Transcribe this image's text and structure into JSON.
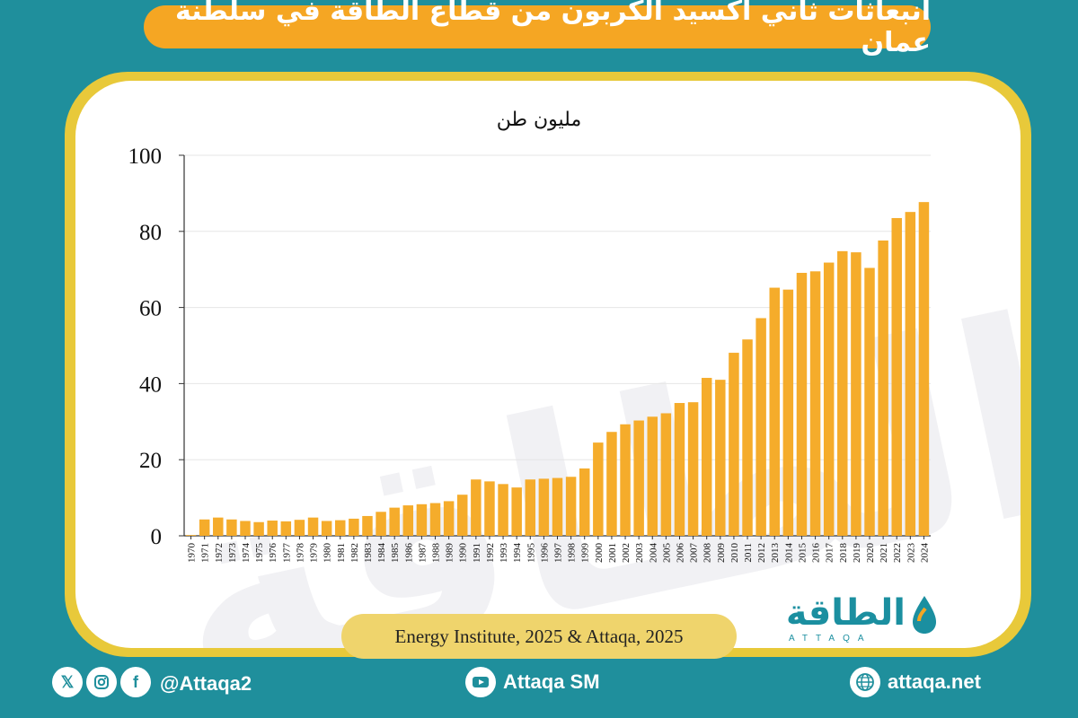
{
  "header": {
    "title": "انبعاثات ثاني أكسيد الكربون من قطاع الطاقة في سلطنة عمان"
  },
  "watermark": {
    "text": "الطاقة"
  },
  "source": {
    "text": "Energy Institute, 2025 & Attaqa, 2025"
  },
  "logo": {
    "arabic": "الطاقة",
    "latin": "ATTAQA"
  },
  "footer": {
    "handle": "@Attaqa2",
    "youtube": "Attaqa SM",
    "website": "attaqa.net",
    "icons": [
      "x-icon",
      "instagram-icon",
      "facebook-icon",
      "youtube-icon",
      "globe-icon"
    ]
  },
  "colors": {
    "background": "#1f8f9c",
    "title_pill": "#f5a623",
    "card_border": "#e8c93a",
    "bar": "#f5ac2b",
    "source_pill": "#efd46c",
    "brand": "#1b8fa0"
  },
  "chart_data": {
    "type": "bar",
    "title": "",
    "unit_label": "مليون طن",
    "xlabel": "",
    "ylabel": "",
    "ylim": [
      0,
      100
    ],
    "yticks": [
      0,
      20,
      40,
      60,
      80,
      100
    ],
    "grid": true,
    "categories": [
      "1970",
      "1971",
      "1972",
      "1973",
      "1974",
      "1975",
      "1976",
      "1977",
      "1978",
      "1979",
      "1980",
      "1981",
      "1982",
      "1983",
      "1984",
      "1985",
      "1986",
      "1987",
      "1988",
      "1989",
      "1990",
      "1991",
      "1992",
      "1993",
      "1994",
      "1995",
      "1996",
      "1997",
      "1998",
      "1999",
      "2000",
      "2001",
      "2002",
      "2003",
      "2004",
      "2005",
      "2006",
      "2007",
      "2008",
      "2009",
      "2010",
      "2011",
      "2012",
      "2013",
      "2014",
      "2015",
      "2016",
      "2017",
      "2018",
      "2019",
      "2020",
      "2021",
      "2022",
      "2023",
      "2024"
    ],
    "values": [
      0.2,
      4.3,
      4.8,
      4.3,
      3.9,
      3.6,
      4.0,
      3.8,
      4.2,
      4.8,
      3.9,
      4.1,
      4.5,
      5.2,
      6.3,
      7.4,
      8.0,
      8.3,
      8.6,
      9.1,
      10.8,
      14.8,
      14.3,
      13.6,
      12.7,
      14.8,
      15.0,
      15.2,
      15.5,
      17.7,
      24.5,
      27.3,
      29.3,
      30.3,
      31.3,
      32.2,
      34.9,
      35.1,
      41.5,
      41.0,
      48.1,
      51.6,
      57.2,
      65.2,
      64.7,
      69.1,
      69.5,
      71.8,
      74.8,
      74.5,
      70.4,
      77.6,
      83.5,
      85.1,
      87.7
    ]
  }
}
